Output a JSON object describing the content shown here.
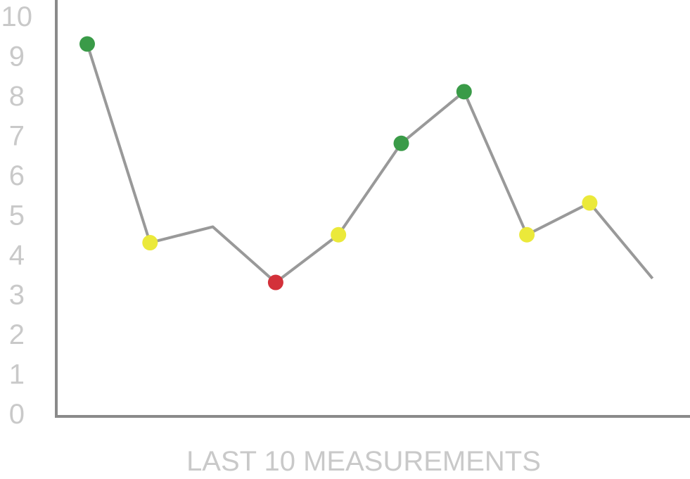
{
  "chart_data": {
    "type": "line",
    "xlabel": "LAST 10 MEASUREMENTS",
    "ylabel": "",
    "ylim": [
      0,
      10
    ],
    "yticks": [
      "0",
      "1",
      "2",
      "3",
      "4",
      "5",
      "6",
      "7",
      "8",
      "9",
      "10"
    ],
    "grid": false,
    "legend": "none",
    "x": [
      1,
      2,
      3,
      4,
      5,
      6,
      7,
      8,
      9,
      10
    ],
    "values": [
      9.3,
      4.3,
      4.7,
      3.3,
      4.5,
      6.8,
      8.1,
      4.5,
      5.3,
      3.4
    ],
    "markers": [
      "green",
      "yellow",
      "none",
      "red",
      "yellow",
      "green",
      "green",
      "yellow",
      "yellow",
      "none"
    ],
    "colors": {
      "line": "#999999",
      "axis": "#8a8a8a",
      "green": "#3a9b48",
      "yellow": "#ebe93a",
      "red": "#d3313a"
    }
  }
}
